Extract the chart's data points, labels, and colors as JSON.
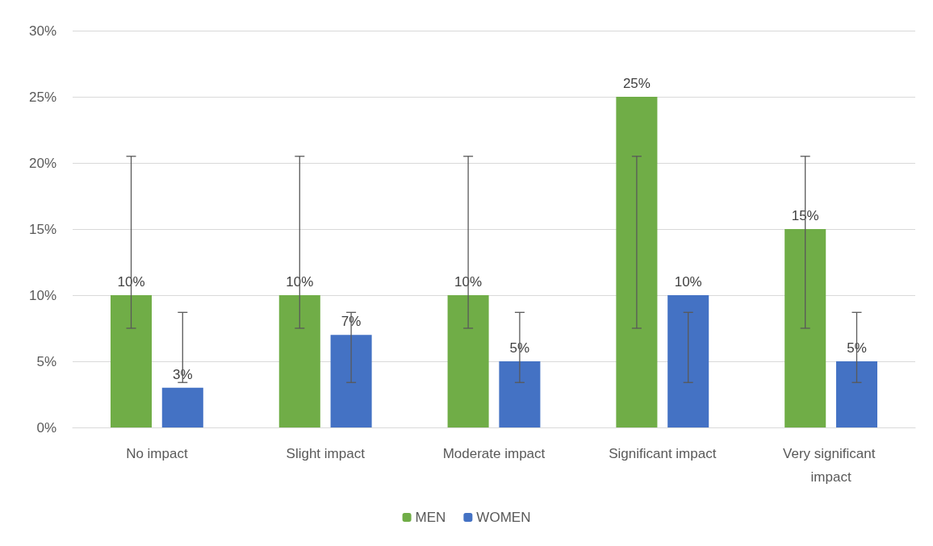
{
  "chart_data": {
    "type": "bar",
    "categories": [
      "No impact",
      "Slight impact",
      "Moderate impact",
      "Significant impact",
      "Very significant impact"
    ],
    "series": [
      {
        "name": "MEN",
        "color": "#70ad47",
        "values": [
          10,
          10,
          10,
          25,
          15
        ],
        "value_labels": [
          "10%",
          "10%",
          "10%",
          "25%",
          "15%"
        ],
        "errors": [
          [
            7.5,
            20.5
          ],
          [
            7.5,
            20.5
          ],
          [
            7.5,
            20.5
          ],
          [
            7.5,
            20.5
          ],
          [
            7.5,
            20.5
          ]
        ]
      },
      {
        "name": "WOMEN",
        "color": "#4472c4",
        "values": [
          3,
          7,
          5,
          10,
          5
        ],
        "value_labels": [
          "3%",
          "7%",
          "5%",
          "10%",
          "5%"
        ],
        "errors": [
          [
            3.4,
            8.7
          ],
          [
            3.4,
            8.7
          ],
          [
            3.4,
            8.7
          ],
          [
            3.4,
            8.7
          ],
          [
            3.4,
            8.7
          ]
        ]
      }
    ],
    "ylim": [
      0,
      30
    ],
    "yticks": [
      {
        "value": 0,
        "label": "0%"
      },
      {
        "value": 5,
        "label": "5%"
      },
      {
        "value": 10,
        "label": "10%"
      },
      {
        "value": 15,
        "label": "15%"
      },
      {
        "value": 20,
        "label": "20%"
      },
      {
        "value": 25,
        "label": "25%"
      },
      {
        "value": 30,
        "label": "30%"
      }
    ],
    "grid": "y",
    "legend": "bottom"
  }
}
